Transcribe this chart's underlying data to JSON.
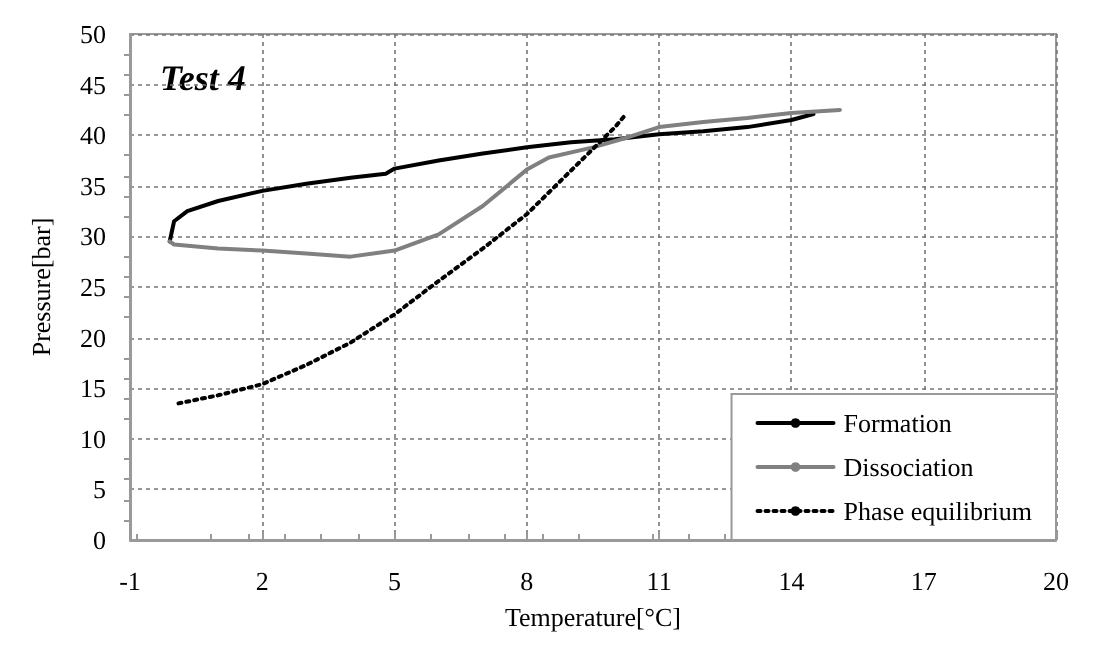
{
  "chart_data": {
    "type": "line",
    "xlabel": "Temperature[°C]",
    "ylabel": "Pressure[bar]",
    "annotations": [
      "Test 4"
    ],
    "xlim": [
      -1,
      20
    ],
    "xticks": [
      -1,
      2,
      5,
      8,
      11,
      14,
      17,
      20
    ],
    "ylim": [
      0,
      50
    ],
    "yticks": [
      0,
      5,
      10,
      15,
      20,
      25,
      30,
      35,
      40,
      45,
      50
    ],
    "grid": true,
    "legend": "bottom right",
    "marker": "none",
    "series": [
      {
        "name": "Formation",
        "color": "#000000",
        "line_style": "solid",
        "x": [
          -0.1,
          0,
          0.3,
          1,
          2,
          3,
          4,
          4.8,
          5,
          6,
          7,
          8,
          9,
          10,
          11,
          12,
          13,
          14,
          14.5
        ],
        "values": [
          29.5,
          31.5,
          32.5,
          33.5,
          34.5,
          35.2,
          35.8,
          36.2,
          36.7,
          37.5,
          38.2,
          38.8,
          39.3,
          39.6,
          40.1,
          40.4,
          40.8,
          41.5,
          42.1
        ]
      },
      {
        "name": "Dissociation",
        "color": "#808080",
        "line_style": "solid",
        "x": [
          -0.1,
          0,
          1,
          2,
          3,
          4,
          5,
          6,
          7,
          8,
          8.5,
          9.5,
          10.3,
          11,
          12,
          13,
          14,
          15.1
        ],
        "values": [
          29.5,
          29.2,
          28.8,
          28.6,
          28.3,
          28,
          28.6,
          30.2,
          33,
          36.6,
          37.8,
          38.8,
          39.8,
          40.8,
          41.3,
          41.7,
          42.2,
          42.5
        ]
      },
      {
        "name": "Phase equilibrium",
        "color": "#000000",
        "line_style": "dotted",
        "x": [
          0.1,
          1,
          2,
          3,
          4,
          5,
          6,
          7,
          8,
          9,
          10,
          10.25
        ],
        "values": [
          13.5,
          14.3,
          15.4,
          17.3,
          19.5,
          22.3,
          25.6,
          28.8,
          32.2,
          36.5,
          40.8,
          42.1
        ]
      }
    ]
  }
}
